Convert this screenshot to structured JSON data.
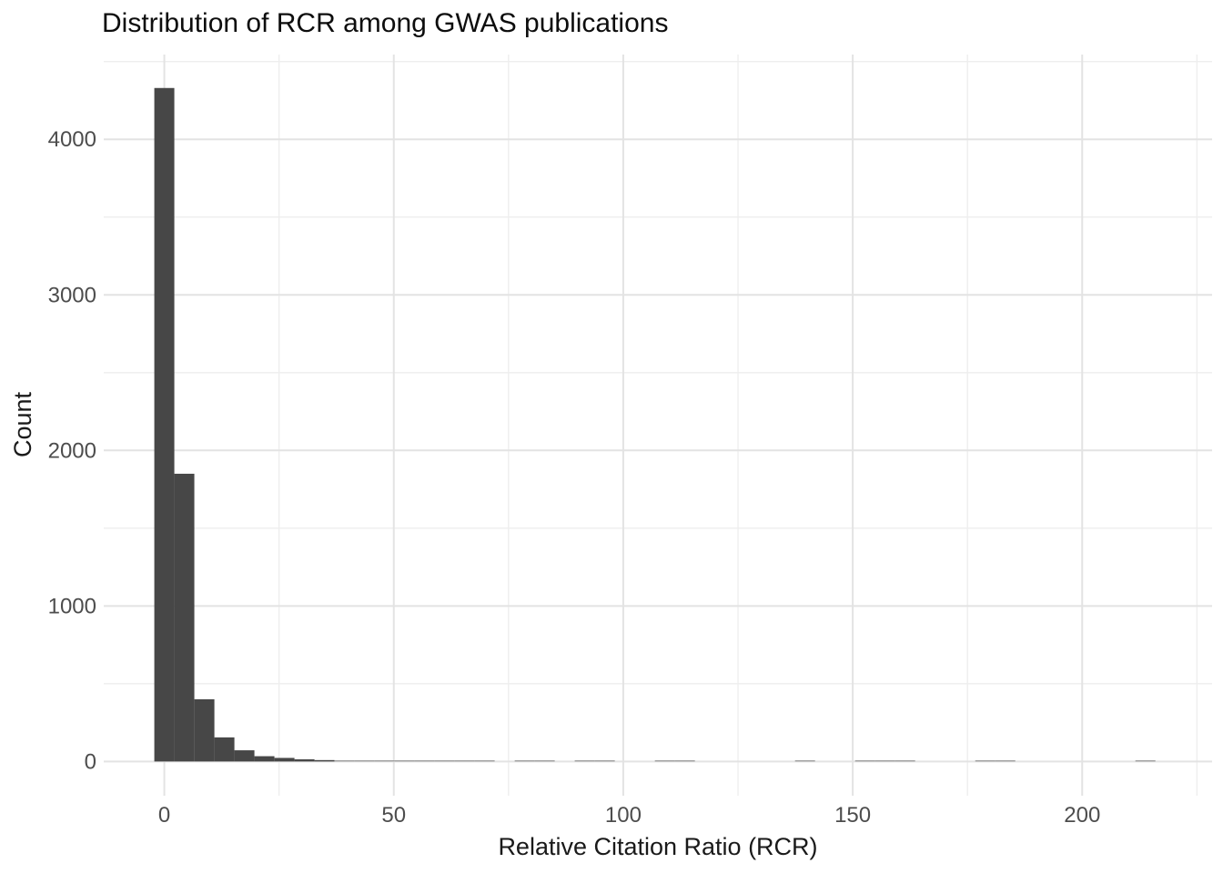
{
  "title": "Distribution of RCR among GWAS publications",
  "chart_data": {
    "type": "bar",
    "subtype": "histogram",
    "title": "Distribution of RCR among GWAS publications",
    "xlabel": "Relative Citation Ratio (RCR)",
    "ylabel": "Count",
    "x_major_ticks": [
      0,
      50,
      100,
      150,
      200
    ],
    "x_minor_ticks": [
      25,
      75,
      125,
      175,
      225
    ],
    "y_major_ticks": [
      0,
      1000,
      2000,
      3000,
      4000
    ],
    "y_minor_ticks": [
      500,
      1500,
      2500,
      3500,
      4500
    ],
    "xlim": [
      -13.2,
      228.3
    ],
    "ylim": [
      -220,
      4545
    ],
    "binwidth": 4.36,
    "grid": "major and minor gridlines, light gray on white, no axis lines (theme_minimal)",
    "legend": "none",
    "bins": [
      [
        0,
        4330
      ],
      [
        4.36,
        1850
      ],
      [
        8.73,
        400
      ],
      [
        13.09,
        155
      ],
      [
        17.45,
        72
      ],
      [
        21.81,
        34
      ],
      [
        26.18,
        23
      ],
      [
        30.54,
        14
      ],
      [
        34.9,
        9
      ],
      [
        39.26,
        8
      ],
      [
        43.63,
        6
      ],
      [
        47.99,
        5
      ],
      [
        52.35,
        4
      ],
      [
        56.71,
        3
      ],
      [
        61.08,
        3
      ],
      [
        65.44,
        2
      ],
      [
        69.8,
        2
      ],
      [
        78.53,
        1
      ],
      [
        82.89,
        1
      ],
      [
        91.61,
        1
      ],
      [
        95.98,
        1
      ],
      [
        109.07,
        1
      ],
      [
        113.43,
        1
      ],
      [
        139.61,
        1
      ],
      [
        152.7,
        1
      ],
      [
        157.06,
        1
      ],
      [
        161.42,
        1
      ],
      [
        178.88,
        1
      ],
      [
        183.24,
        1
      ],
      [
        213.77,
        1
      ]
    ]
  },
  "colors": {
    "bar_fill": "#474747",
    "bar_fill_faint": "#9a9a9a",
    "grid_major": "#e3e3e3",
    "grid_minor": "#eeeeee",
    "tick_label": "#4d4d4d",
    "title_text": "#0d0d0d",
    "axis_title_text": "#1a1a1a",
    "background": "#ffffff"
  }
}
